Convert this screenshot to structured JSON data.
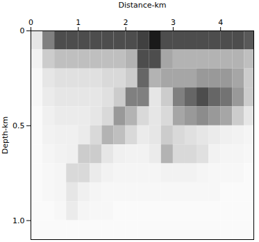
{
  "chart_data": {
    "type": "heatmap",
    "xlabel": "Distance-km",
    "ylabel": "Depth-km",
    "xlim": [
      0,
      4.7
    ],
    "ylim": [
      0,
      1.1
    ],
    "xticks": [
      0,
      1,
      2,
      3,
      4
    ],
    "yticks": [
      0,
      0.5,
      {
        "value": 1,
        "label": "1.0"
      }
    ],
    "zlim": [
      0,
      1
    ],
    "x_edges": [
      0,
      0.25,
      0.5,
      0.75,
      1,
      1.25,
      1.5,
      1.75,
      2,
      2.25,
      2.5,
      2.75,
      3,
      3.25,
      3.5,
      3.75,
      4,
      4.25,
      4.5,
      4.75
    ],
    "y_edges": [
      0,
      0.1,
      0.2,
      0.3,
      0.4,
      0.5,
      0.6,
      0.7,
      0.8,
      0.9,
      1,
      1.1
    ],
    "values": [
      [
        0.1,
        0.5,
        0.7,
        0.7,
        0.7,
        0.7,
        0.7,
        0.7,
        0.7,
        0.75,
        0.9,
        0.7,
        0.7,
        0.7,
        0.7,
        0.7,
        0.7,
        0.7,
        0.65
      ],
      [
        0.05,
        0.2,
        0.25,
        0.25,
        0.25,
        0.25,
        0.25,
        0.25,
        0.3,
        0.7,
        0.7,
        0.35,
        0.3,
        0.3,
        0.3,
        0.3,
        0.3,
        0.3,
        0.25
      ],
      [
        0.03,
        0.1,
        0.12,
        0.12,
        0.12,
        0.12,
        0.15,
        0.15,
        0.2,
        0.6,
        0.3,
        0.35,
        0.35,
        0.35,
        0.4,
        0.4,
        0.4,
        0.35,
        0.2
      ],
      [
        0.03,
        0.08,
        0.1,
        0.1,
        0.1,
        0.1,
        0.12,
        0.2,
        0.5,
        0.5,
        0.1,
        0.2,
        0.5,
        0.6,
        0.7,
        0.6,
        0.55,
        0.4,
        0.2
      ],
      [
        0.02,
        0.06,
        0.08,
        0.08,
        0.08,
        0.1,
        0.15,
        0.4,
        0.3,
        0.15,
        0.1,
        0.15,
        0.35,
        0.4,
        0.45,
        0.4,
        0.35,
        0.2,
        0.1
      ],
      [
        0.02,
        0.05,
        0.06,
        0.06,
        0.08,
        0.15,
        0.3,
        0.25,
        0.15,
        0.08,
        0.1,
        0.2,
        0.15,
        0.12,
        0.1,
        0.08,
        0.06,
        0.05,
        0.04
      ],
      [
        0.02,
        0.04,
        0.05,
        0.06,
        0.2,
        0.2,
        0.1,
        0.06,
        0.05,
        0.05,
        0.08,
        0.3,
        0.15,
        0.15,
        0.12,
        0.05,
        0.04,
        0.04,
        0.03
      ],
      [
        0.02,
        0.03,
        0.04,
        0.15,
        0.15,
        0.08,
        0.05,
        0.04,
        0.04,
        0.04,
        0.04,
        0.05,
        0.05,
        0.05,
        0.04,
        0.03,
        0.03,
        0.03,
        0.02
      ],
      [
        0.02,
        0.03,
        0.04,
        0.1,
        0.06,
        0.04,
        0.03,
        0.03,
        0.03,
        0.03,
        0.03,
        0.03,
        0.03,
        0.03,
        0.03,
        0.03,
        0.02,
        0.02,
        0.02
      ],
      [
        0.02,
        0.02,
        0.03,
        0.08,
        0.04,
        0.03,
        0.03,
        0.02,
        0.02,
        0.02,
        0.02,
        0.02,
        0.02,
        0.02,
        0.02,
        0.02,
        0.02,
        0.02,
        0.02
      ],
      [
        0.02,
        0.02,
        0.02,
        0.02,
        0.02,
        0.02,
        0.02,
        0.02,
        0.02,
        0.02,
        0.02,
        0.02,
        0.02,
        0.02,
        0.02,
        0.02,
        0.02,
        0.02,
        0.02
      ]
    ]
  }
}
